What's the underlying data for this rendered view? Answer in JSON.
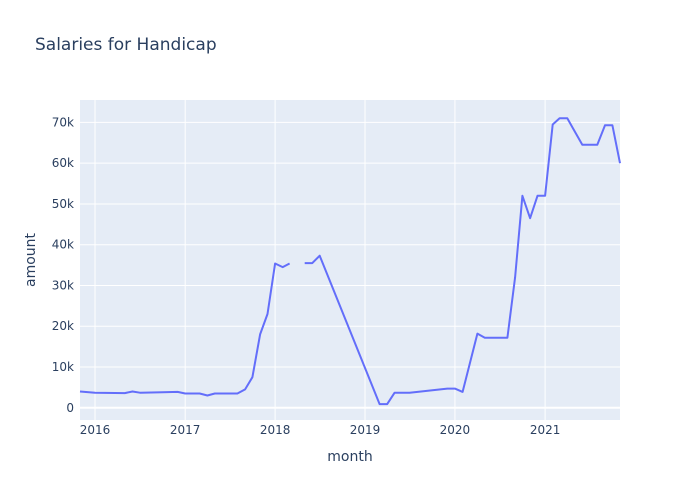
{
  "chart_data": {
    "type": "line",
    "title": "Salaries for Handicap",
    "xlabel": "month",
    "ylabel": "amount",
    "x_type": "date",
    "xlim": [
      "2015-11-01",
      "2021-11-01"
    ],
    "ylim": [
      -3000,
      75500
    ],
    "x_ticks": [
      {
        "label": "2016",
        "value": "2016-01-01"
      },
      {
        "label": "2017",
        "value": "2017-01-01"
      },
      {
        "label": "2018",
        "value": "2018-01-01"
      },
      {
        "label": "2019",
        "value": "2019-01-01"
      },
      {
        "label": "2020",
        "value": "2020-01-01"
      },
      {
        "label": "2021",
        "value": "2021-01-01"
      }
    ],
    "y_ticks": [
      {
        "label": "0",
        "value": 0
      },
      {
        "label": "10k",
        "value": 10000
      },
      {
        "label": "20k",
        "value": 20000
      },
      {
        "label": "30k",
        "value": 30000
      },
      {
        "label": "40k",
        "value": 40000
      },
      {
        "label": "50k",
        "value": 50000
      },
      {
        "label": "60k",
        "value": 60000
      },
      {
        "label": "70k",
        "value": 70000
      }
    ],
    "grid": true,
    "colors": {
      "line": "#636efa",
      "plot_bg": "#e5ecf6",
      "grid": "#ffffff",
      "text": "#2a3f5f"
    },
    "series": [
      {
        "segments": [
          [
            [
              "2015-11-01",
              4000
            ],
            [
              "2016-01-01",
              3700
            ],
            [
              "2016-05-01",
              3600
            ],
            [
              "2016-06-01",
              4000
            ],
            [
              "2016-07-01",
              3700
            ],
            [
              "2016-10-01",
              3800
            ],
            [
              "2016-12-01",
              3900
            ],
            [
              "2017-01-01",
              3500
            ],
            [
              "2017-03-01",
              3500
            ],
            [
              "2017-04-01",
              3000
            ],
            [
              "2017-05-01",
              3500
            ],
            [
              "2017-08-01",
              3500
            ],
            [
              "2017-09-01",
              4500
            ],
            [
              "2017-10-01",
              7500
            ],
            [
              "2017-11-01",
              18000
            ],
            [
              "2017-12-01",
              23000
            ],
            [
              "2018-01-01",
              35400
            ],
            [
              "2018-02-01",
              34500
            ],
            [
              "2018-03-01",
              35400
            ]
          ],
          [
            [
              "2018-05-01",
              35500
            ],
            [
              "2018-06-01",
              35500
            ],
            [
              "2018-07-01",
              37300
            ],
            [
              "2019-03-01",
              900
            ],
            [
              "2019-04-01",
              900
            ],
            [
              "2019-05-01",
              3700
            ],
            [
              "2019-07-01",
              3700
            ],
            [
              "2019-12-01",
              4700
            ],
            [
              "2020-01-01",
              4700
            ],
            [
              "2020-02-01",
              3900
            ],
            [
              "2020-04-01",
              18200
            ],
            [
              "2020-05-01",
              17200
            ],
            [
              "2020-08-01",
              17200
            ],
            [
              "2020-09-01",
              32000
            ],
            [
              "2020-10-01",
              52000
            ],
            [
              "2020-11-01",
              46500
            ],
            [
              "2020-12-01",
              52000
            ],
            [
              "2021-01-01",
              52000
            ],
            [
              "2021-02-01",
              69500
            ],
            [
              "2021-03-01",
              71000
            ],
            [
              "2021-04-01",
              71000
            ],
            [
              "2021-06-01",
              64500
            ],
            [
              "2021-08-01",
              64500
            ],
            [
              "2021-09-01",
              69300
            ],
            [
              "2021-10-01",
              69300
            ],
            [
              "2021-11-01",
              60000
            ]
          ]
        ]
      }
    ]
  }
}
